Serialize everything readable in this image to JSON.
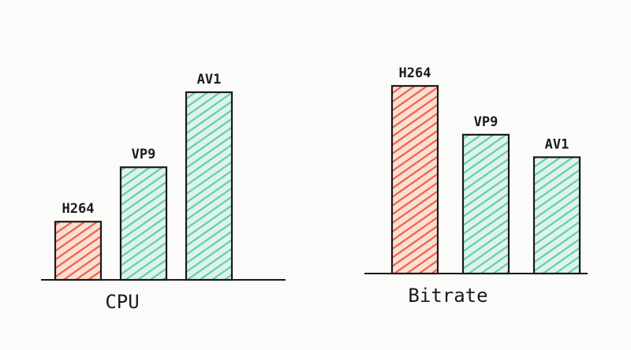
{
  "chart_data": [
    {
      "type": "bar",
      "xlabel": "CPU",
      "categories": [
        "H264",
        "VP9",
        "AV1"
      ],
      "values": [
        31,
        60,
        100
      ],
      "colors": [
        "#f0603c",
        "#5fcfae",
        "#5fcfae"
      ]
    },
    {
      "type": "bar",
      "xlabel": "Bitrate",
      "categories": [
        "H264",
        "VP9",
        "AV1"
      ],
      "values": [
        100,
        74,
        62
      ],
      "colors": [
        "#f0603c",
        "#5fcfae",
        "#5fcfae"
      ]
    }
  ]
}
